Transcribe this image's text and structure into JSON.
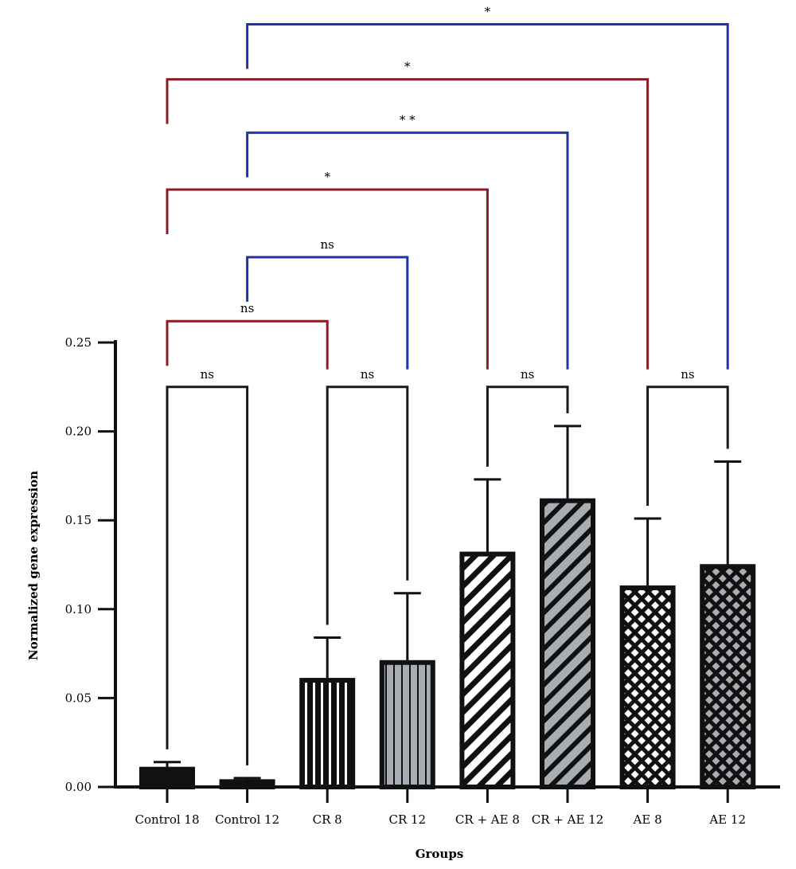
{
  "chart_data": {
    "type": "bar",
    "categories": [
      "Control 18",
      "Control 12",
      "CR 8",
      "CR 12",
      "CR + AE 8",
      "CR + AE 12",
      "AE 8",
      "AE 12"
    ],
    "values": [
      0.01,
      0.003,
      0.06,
      0.07,
      0.131,
      0.161,
      0.112,
      0.124
    ],
    "errors": [
      0.004,
      0.002,
      0.024,
      0.039,
      0.042,
      0.042,
      0.039,
      0.059
    ],
    "xlabel": "Groups",
    "ylabel": "Normalized gene expression",
    "ylim": [
      0,
      0.25
    ],
    "yticks": [
      "0.00",
      "0.05",
      "0.10",
      "0.15",
      "0.20",
      "0.25"
    ],
    "ytick_values": [
      0,
      0.05,
      0.1,
      0.15,
      0.2,
      0.25
    ],
    "patterns": [
      "solid-black",
      "solid-black",
      "black-vertical-white",
      "gray-vertical-black",
      "white-diagonal",
      "gray-diagonal",
      "white-diamond",
      "gray-diamond"
    ],
    "comparisons": [
      {
        "from": 0,
        "to": 1,
        "label": "ns",
        "color": "black",
        "height": 0.225
      },
      {
        "from": 2,
        "to": 3,
        "label": "ns",
        "color": "black",
        "height": 0.225
      },
      {
        "from": 4,
        "to": 5,
        "label": "ns",
        "color": "black",
        "height": 0.225
      },
      {
        "from": 6,
        "to": 7,
        "label": "ns",
        "color": "black",
        "height": 0.225
      },
      {
        "from": 0,
        "to": 2,
        "label": "ns",
        "color": "red",
        "height": 0.262
      },
      {
        "from": 1,
        "to": 3,
        "label": "ns",
        "color": "blue",
        "height": 0.298
      },
      {
        "from": 0,
        "to": 4,
        "label": "*",
        "color": "red",
        "height": 0.336
      },
      {
        "from": 1,
        "to": 5,
        "label": "* *",
        "color": "blue",
        "height": 0.368
      },
      {
        "from": 0,
        "to": 6,
        "label": "*",
        "color": "red",
        "height": 0.398
      },
      {
        "from": 1,
        "to": 7,
        "label": "*",
        "color": "blue",
        "height": 0.429
      }
    ],
    "colors": {
      "black": "#1a1a1a",
      "gray": "#a8adb3",
      "red": "#8b1c24",
      "blue": "#2233aa"
    }
  }
}
